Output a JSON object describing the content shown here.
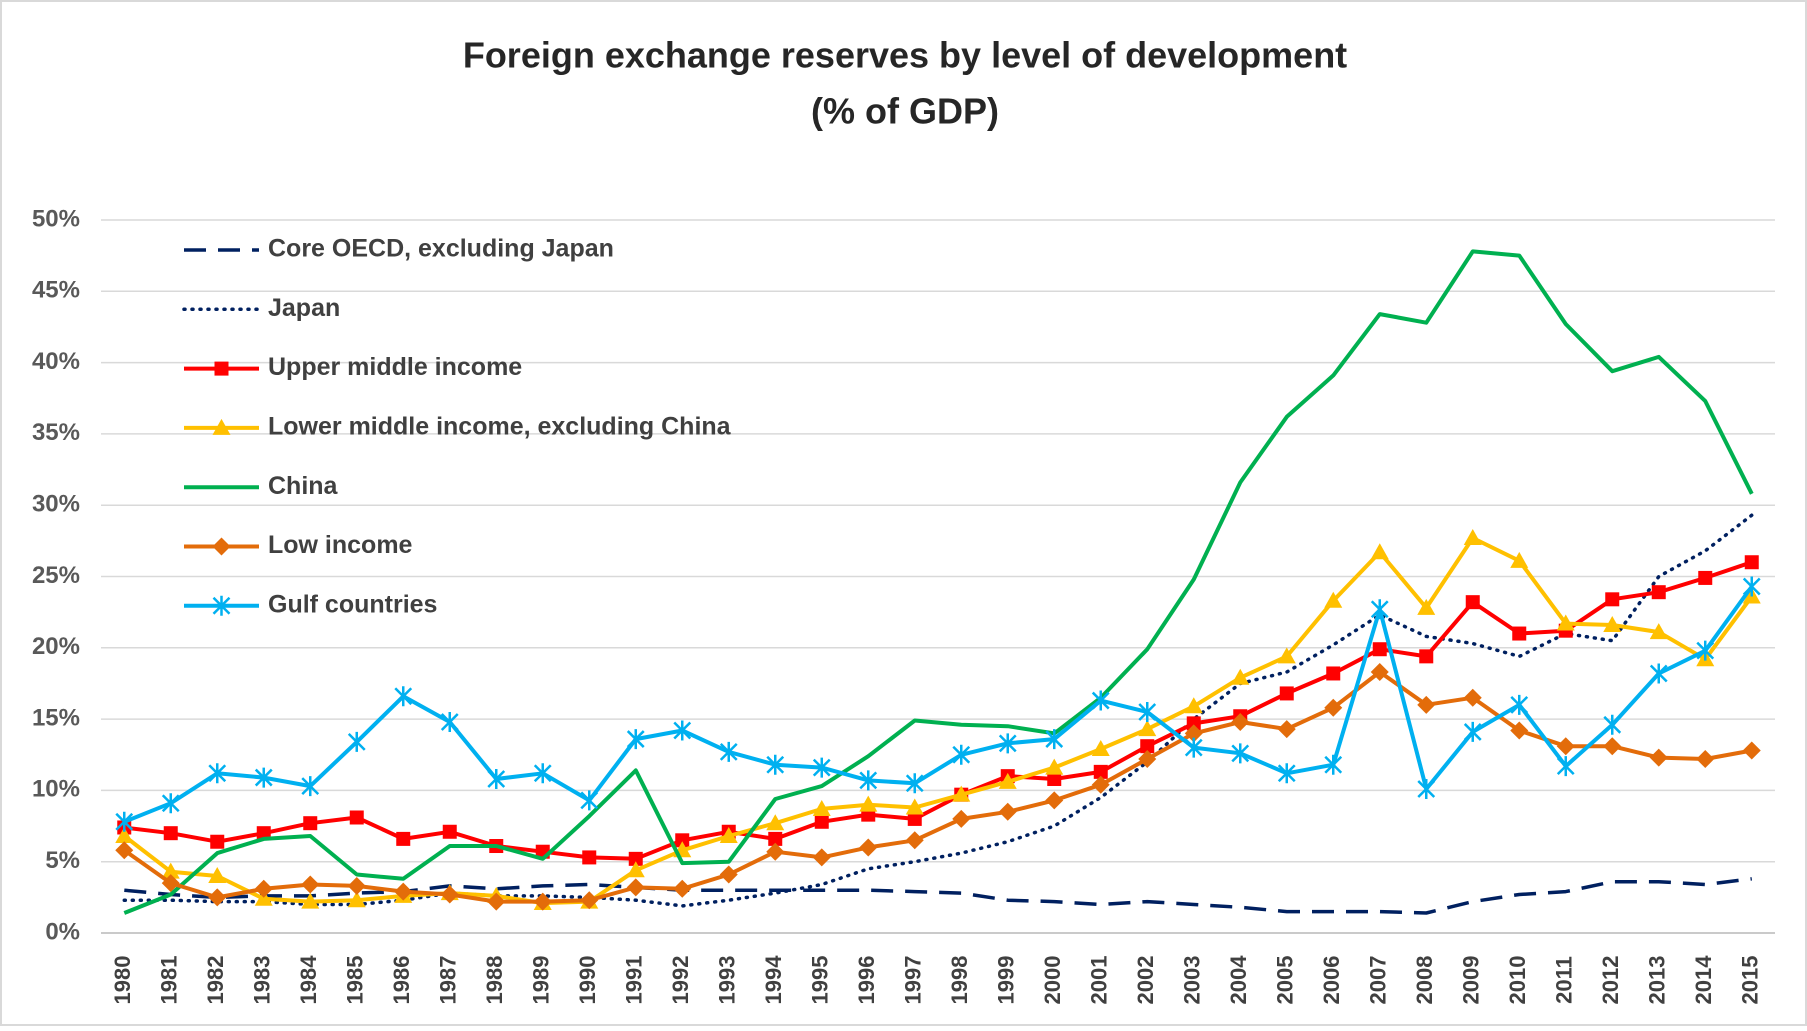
{
  "chart_data": {
    "type": "line",
    "title": "Foreign exchange reserves by level of development",
    "subtitle": "(% of GDP)",
    "categories": [
      "1980",
      "1981",
      "1982",
      "1983",
      "1984",
      "1985",
      "1986",
      "1987",
      "1988",
      "1989",
      "1990",
      "1991",
      "1992",
      "1993",
      "1994",
      "1995",
      "1996",
      "1997",
      "1998",
      "1999",
      "2000",
      "2001",
      "2002",
      "2003",
      "2004",
      "2005",
      "2006",
      "2007",
      "2008",
      "2009",
      "2010",
      "2011",
      "2012",
      "2013",
      "2014",
      "2015"
    ],
    "ylim": [
      0,
      50
    ],
    "yticks": [
      {
        "value": 0,
        "label": "0%"
      },
      {
        "value": 5,
        "label": "5%"
      },
      {
        "value": 10,
        "label": "10%"
      },
      {
        "value": 15,
        "label": "15%"
      },
      {
        "value": 20,
        "label": "20%"
      },
      {
        "value": 25,
        "label": "25%"
      },
      {
        "value": 30,
        "label": "30%"
      },
      {
        "value": 35,
        "label": "35%"
      },
      {
        "value": 40,
        "label": "40%"
      },
      {
        "value": 45,
        "label": "45%"
      },
      {
        "value": 50,
        "label": "50%"
      }
    ],
    "grid": true,
    "legend": "upper-left",
    "series": [
      {
        "name": "Core OECD, excluding Japan",
        "color": "#002060",
        "style": "dashed",
        "marker": "none",
        "values": [
          3.0,
          2.7,
          2.5,
          2.6,
          2.6,
          2.8,
          2.9,
          3.3,
          3.1,
          3.3,
          3.4,
          3.2,
          3.0,
          3.0,
          3.0,
          3.0,
          3.0,
          2.9,
          2.8,
          2.3,
          2.2,
          2.0,
          2.2,
          2.0,
          1.8,
          1.5,
          1.5,
          1.5,
          1.4,
          2.2,
          2.7,
          2.9,
          3.6,
          3.6,
          3.4,
          3.8
        ]
      },
      {
        "name": "Japan",
        "color": "#002060",
        "style": "dotted",
        "marker": "none",
        "values": [
          2.3,
          2.3,
          2.2,
          2.2,
          2.0,
          2.0,
          2.3,
          2.8,
          2.6,
          2.6,
          2.5,
          2.3,
          1.9,
          2.3,
          2.8,
          3.4,
          4.5,
          5.0,
          5.6,
          6.4,
          7.5,
          9.5,
          12.0,
          15.0,
          17.5,
          18.3,
          20.2,
          22.3,
          20.8,
          20.3,
          19.4,
          21.0,
          20.5,
          25.0,
          26.8,
          29.3
        ]
      },
      {
        "name": "Upper middle income",
        "color": "#ff0000",
        "style": "solid",
        "marker": "square",
        "values": [
          7.4,
          7.0,
          6.4,
          7.0,
          7.7,
          8.1,
          6.6,
          7.1,
          6.1,
          5.7,
          5.3,
          5.2,
          6.5,
          7.1,
          6.6,
          7.8,
          8.3,
          8.0,
          9.7,
          11.0,
          10.8,
          11.3,
          13.1,
          14.7,
          15.2,
          16.8,
          18.2,
          19.9,
          19.4,
          23.2,
          21.0,
          21.2,
          23.4,
          23.9,
          24.9,
          26.0
        ]
      },
      {
        "name": "Lower middle income, excluding China",
        "color": "#ffc000",
        "style": "solid",
        "marker": "triangle",
        "values": [
          6.8,
          4.3,
          4.0,
          2.4,
          2.2,
          2.3,
          2.6,
          2.8,
          2.6,
          2.1,
          2.2,
          4.4,
          5.8,
          6.8,
          7.7,
          8.7,
          9.0,
          8.8,
          9.7,
          10.6,
          11.6,
          12.9,
          14.3,
          15.9,
          17.9,
          19.4,
          23.3,
          26.7,
          22.8,
          27.7,
          26.1,
          21.7,
          21.6,
          21.1,
          19.2,
          23.6
        ]
      },
      {
        "name": "China",
        "color": "#00b050",
        "style": "solid",
        "marker": "none",
        "values": [
          1.4,
          2.7,
          5.6,
          6.6,
          6.8,
          4.1,
          3.8,
          6.1,
          6.1,
          5.2,
          8.2,
          11.4,
          4.9,
          5.0,
          9.4,
          10.3,
          12.4,
          14.9,
          14.6,
          14.5,
          14.0,
          16.5,
          19.9,
          24.8,
          31.6,
          36.2,
          39.1,
          43.4,
          42.8,
          47.8,
          47.5,
          42.7,
          39.4,
          40.4,
          37.3,
          30.8
        ]
      },
      {
        "name": "Low income",
        "color": "#e36c0a",
        "style": "solid",
        "marker": "diamond",
        "values": [
          5.8,
          3.5,
          2.5,
          3.1,
          3.4,
          3.3,
          2.9,
          2.7,
          2.2,
          2.2,
          2.3,
          3.2,
          3.1,
          4.1,
          5.7,
          5.3,
          6.0,
          6.5,
          8.0,
          8.5,
          9.3,
          10.4,
          12.2,
          14.0,
          14.8,
          14.3,
          15.8,
          18.3,
          16.0,
          16.5,
          14.2,
          13.1,
          13.1,
          12.3,
          12.2,
          12.8
        ]
      },
      {
        "name": "Gulf countries",
        "color": "#00b0f0",
        "style": "solid",
        "marker": "asterisk",
        "values": [
          7.8,
          9.1,
          11.2,
          10.9,
          10.3,
          13.4,
          16.6,
          14.8,
          10.8,
          11.2,
          9.3,
          13.6,
          14.2,
          12.7,
          11.8,
          11.6,
          10.7,
          10.5,
          12.5,
          13.3,
          13.6,
          16.3,
          15.5,
          13.0,
          12.6,
          11.2,
          11.8,
          22.7,
          10.1,
          14.1,
          16.0,
          11.7,
          14.6,
          18.2,
          19.8,
          24.3
        ]
      }
    ]
  }
}
